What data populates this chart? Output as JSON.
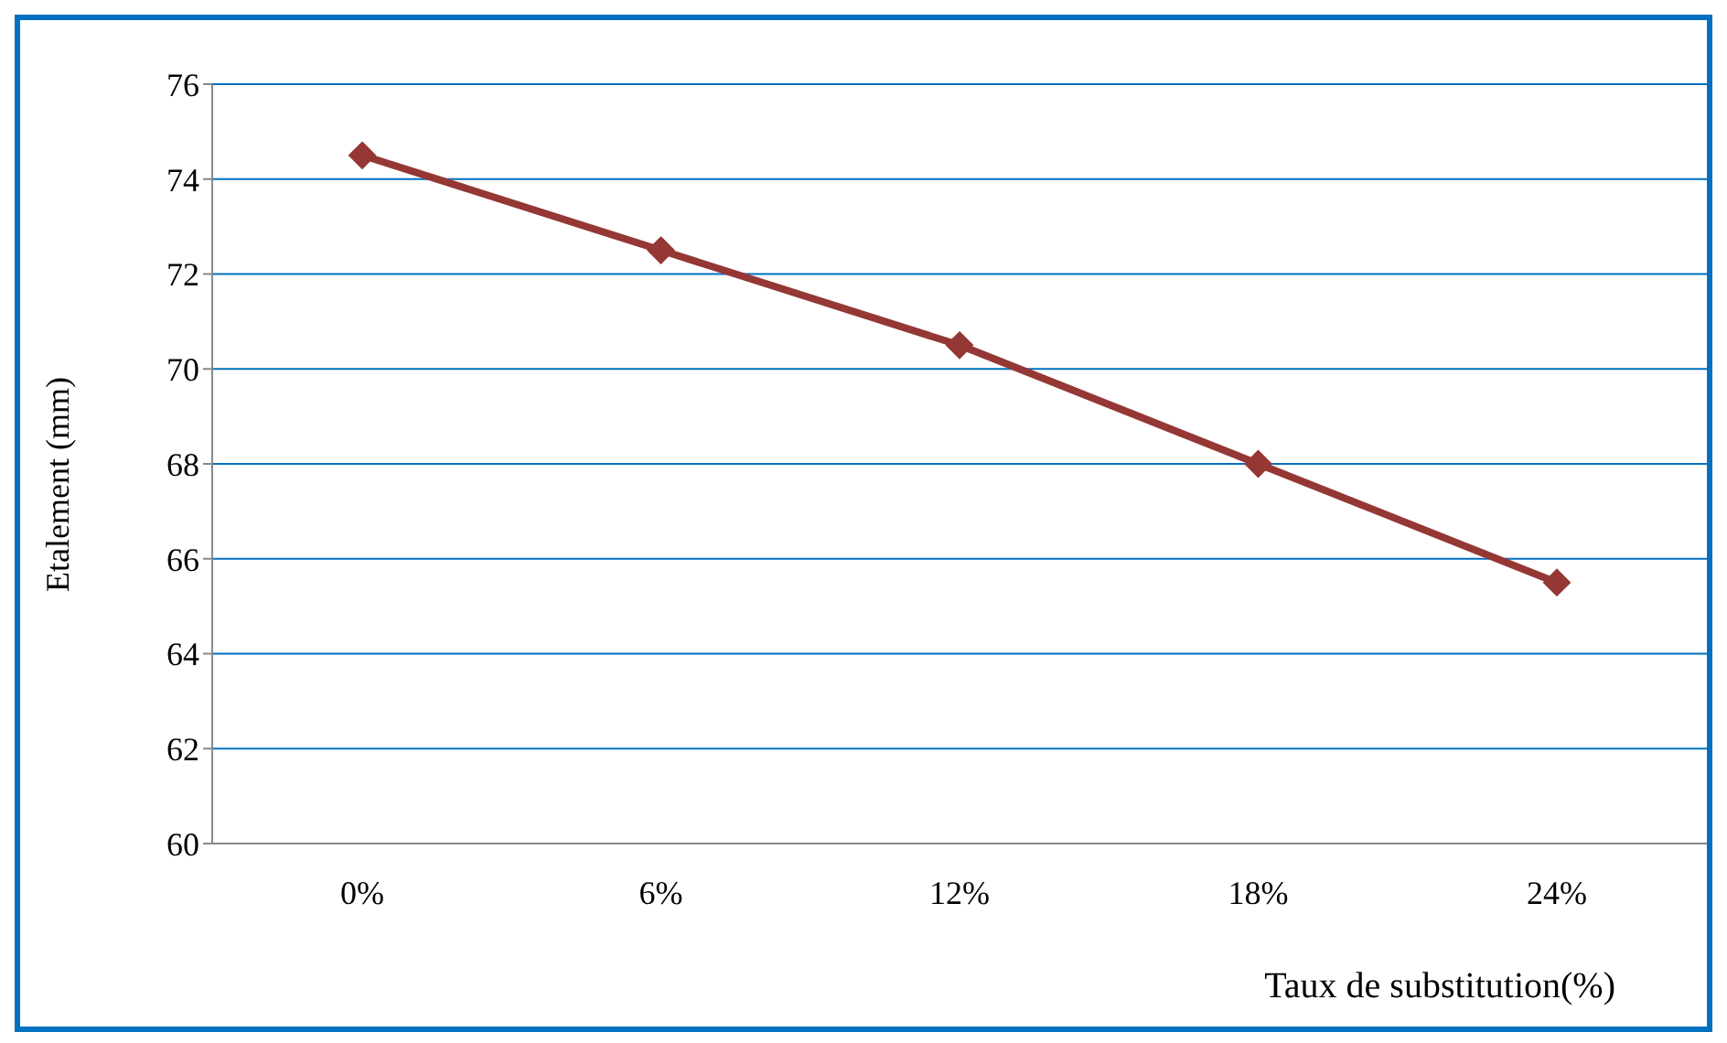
{
  "chart_data": {
    "type": "line",
    "xlabel": "Taux de substitution(%)",
    "ylabel": "Etalement (mm)",
    "categories": [
      "0%",
      "6%",
      "12%",
      "18%",
      "24%"
    ],
    "series": [
      {
        "color": "#953735",
        "values": [
          74.5,
          72.5,
          70.5,
          68,
          65.5
        ]
      }
    ],
    "ylim": [
      60,
      76
    ],
    "yticks": [
      60,
      62,
      64,
      66,
      68,
      70,
      72,
      74,
      76
    ],
    "grid": "y",
    "marker": "diamond",
    "line_style": "solid"
  }
}
